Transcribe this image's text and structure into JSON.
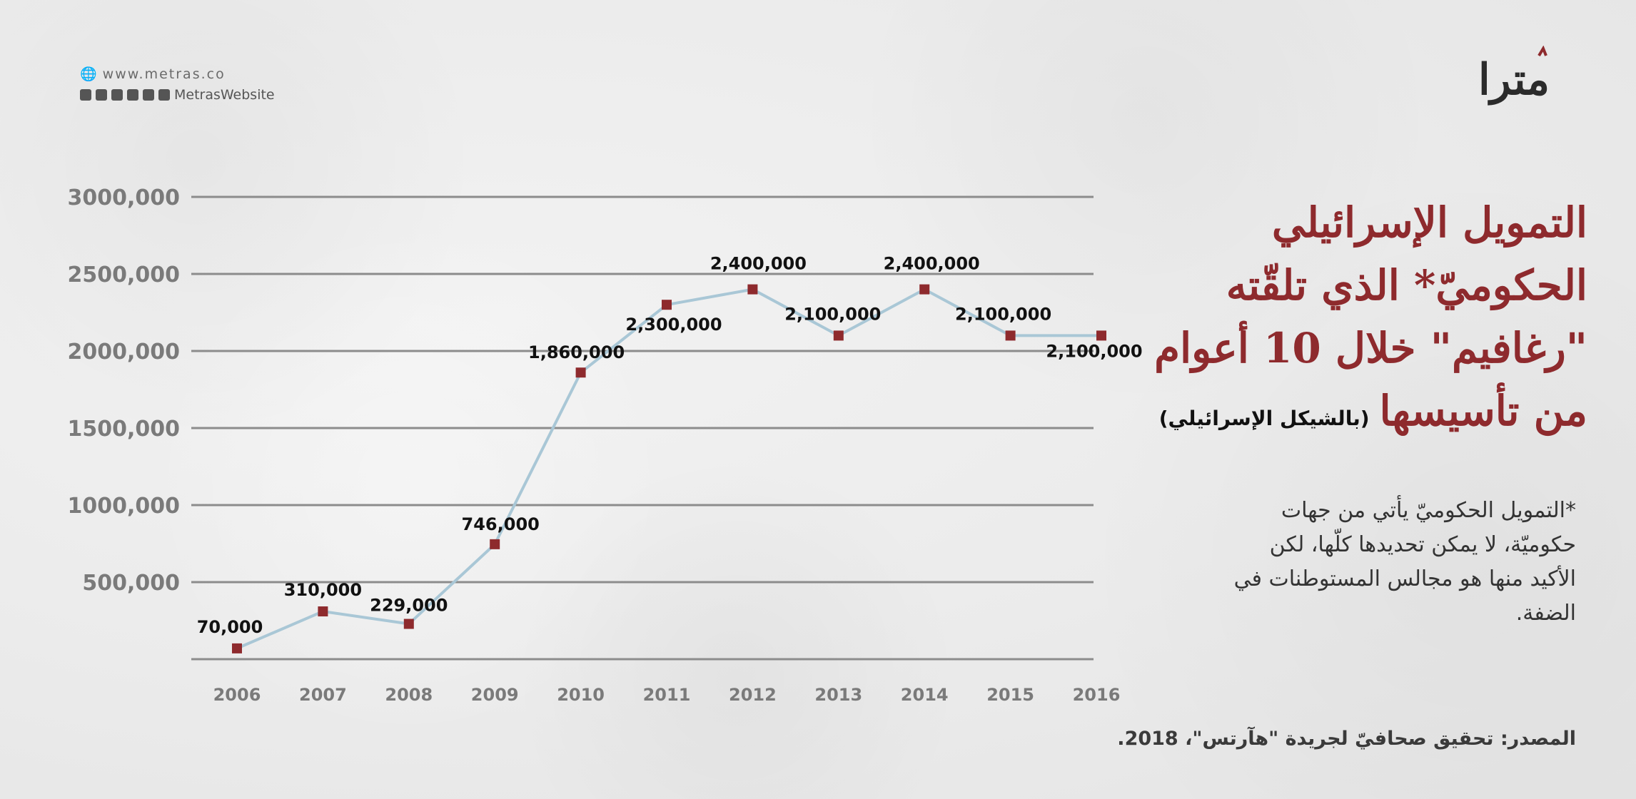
{
  "website": "www.metras.co",
  "social_handle": "MetrasWebsite",
  "social_icons": [
    "vimeo-icon",
    "soundcloud-icon",
    "twitter-icon",
    "facebook-icon",
    "youtube-icon",
    "instagram-icon"
  ],
  "logo_text": "مترا",
  "title_lines": [
    "التمويل الإسرائيلي",
    "الحكوميّ* الذي تلقّته",
    "\"رغافيم\" خلال 10 أعوام",
    "من تأسيسها"
  ],
  "title_sub": "(بالشيكل الإسرائيلي)",
  "note_lines": [
    "*التمويل الحكوميّ يأتي من جهات",
    "حكوميّة، لا يمكن تحديدها كلّها، لكن",
    "الأكيد منها هو مجالس المستوطنات في",
    "الضفة."
  ],
  "source": "المصدر: تحقيق صحافيّ لجريدة \"هآرتس\"، 2018.",
  "colors": {
    "accent": "#8e2a2d",
    "line": "#a9c7d6",
    "grid": "#8c8c8c",
    "text": "#333333"
  },
  "chart_data": {
    "type": "line",
    "categories": [
      "2006",
      "2007",
      "2008",
      "2009",
      "2010",
      "2011",
      "2012",
      "2013",
      "2014",
      "2015",
      "2016"
    ],
    "values": [
      70000,
      310000,
      229000,
      746000,
      1860000,
      2300000,
      2400000,
      2100000,
      2400000,
      2100000,
      2100000
    ],
    "data_labels": [
      "70,000",
      "310,000",
      "229,000",
      "746,000",
      "1,860,000",
      "2,300,000",
      "2,400,000",
      "2,100,000",
      "2,400,000",
      "2,100,000",
      "2,100,000"
    ],
    "yticks": [
      500000,
      1000000,
      1500000,
      2000000,
      2500000,
      3000000
    ],
    "ytick_labels": [
      "500,000",
      "1000,000",
      "1500,000",
      "2000,000",
      "2500,000",
      "3000,000"
    ],
    "ylim": [
      0,
      3000000
    ],
    "grid": true
  }
}
